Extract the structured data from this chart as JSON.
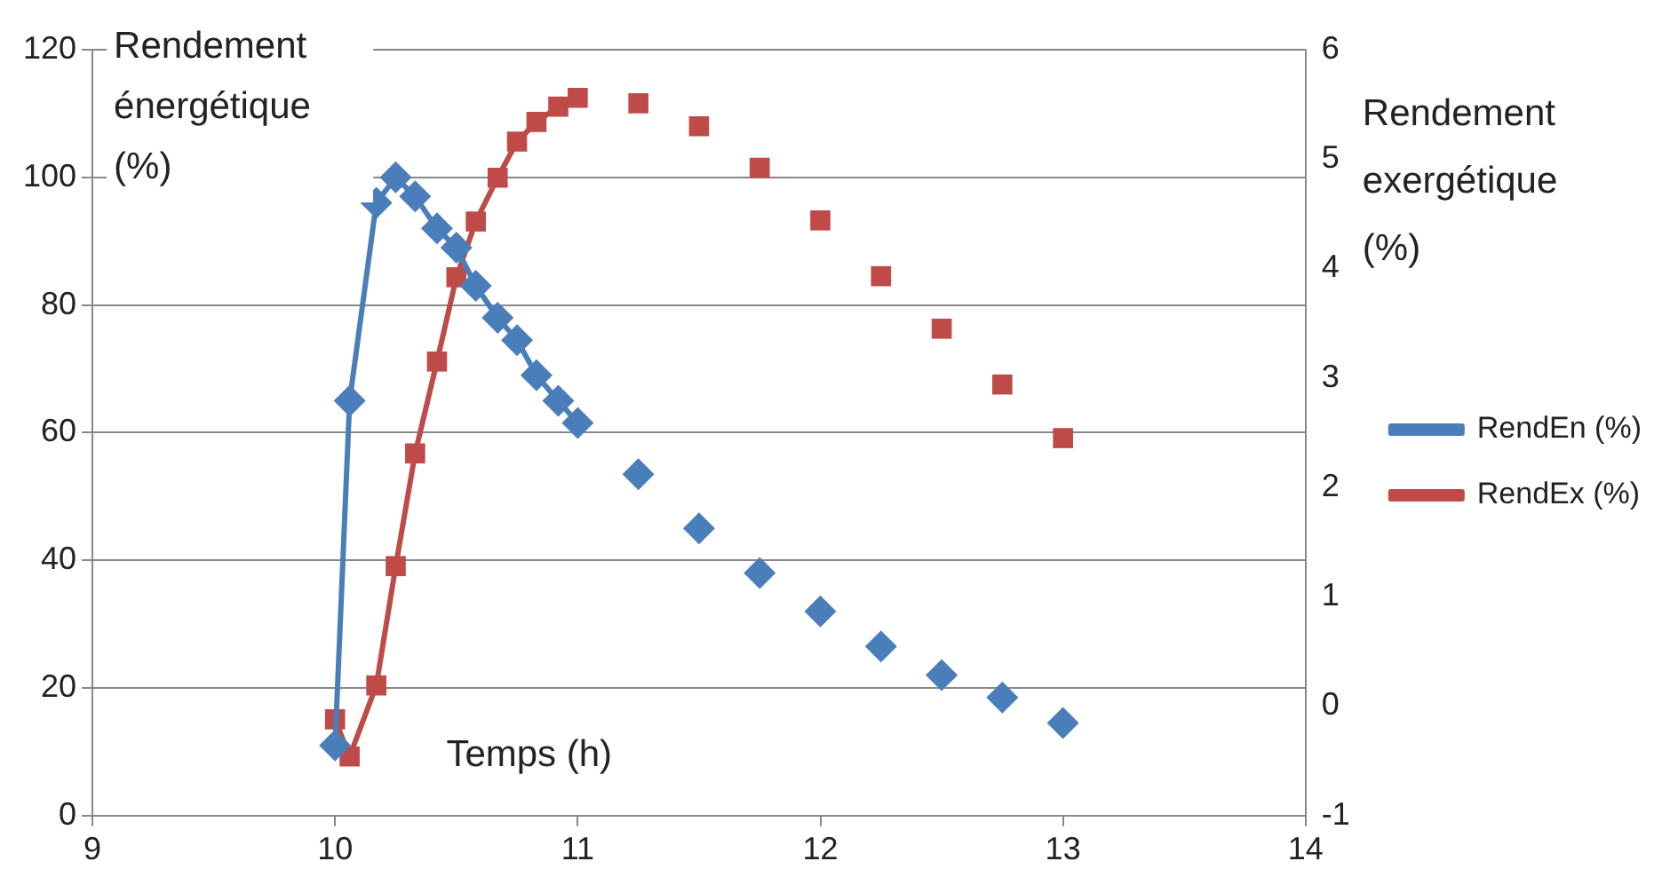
{
  "chart_data": {
    "type": "line",
    "xlabel": "Temps (h)",
    "ylabel": "Rendement énergétique (%)",
    "y2label": "Rendement exergétique (%)",
    "x": [
      10,
      10.06,
      10.17,
      10.25,
      10.33,
      10.42,
      10.5,
      10.58,
      10.67,
      10.75,
      10.83,
      10.92,
      11,
      11.125,
      11.25,
      11.375,
      11.5,
      11.625,
      11.75,
      11.875,
      12,
      12.125,
      12.25,
      12.375,
      12.5,
      12.625,
      12.75,
      12.875,
      13
    ],
    "series": [
      {
        "name": "RendEn (%)",
        "color": "#4a7ebb",
        "marker": "diamond",
        "values": [
          11,
          65,
          96,
          100,
          97,
          92,
          89,
          83,
          78,
          74.5,
          69,
          65,
          61.5,
          null,
          53.5,
          null,
          45,
          null,
          38,
          null,
          32,
          null,
          26.5,
          null,
          22,
          null,
          18.5,
          null,
          14.5
        ]
      },
      {
        "name": "RendEx (%)",
        "color": "#be4b48",
        "marker": "square",
        "axis": "y2",
        "values": [
          -0.12,
          -0.46,
          0.19,
          1.28,
          2.31,
          3.15,
          3.92,
          4.43,
          4.83,
          5.16,
          5.34,
          5.48,
          5.56,
          null,
          5.51,
          null,
          5.3,
          null,
          4.92,
          null,
          4.44,
          null,
          3.93,
          null,
          3.45,
          null,
          2.94,
          null,
          2.45
        ]
      }
    ],
    "xlim": [
      9,
      14
    ],
    "xticks": [
      9,
      10,
      11,
      12,
      13,
      14
    ],
    "ylim": [
      0,
      120
    ],
    "yticks": [
      0,
      20,
      40,
      60,
      80,
      100,
      120
    ],
    "y2lim": [
      -1,
      6
    ],
    "y2ticks": [
      -1,
      0,
      1,
      2,
      3,
      4,
      5,
      6
    ],
    "grid": "y",
    "legend": "right",
    "line_style": "solid"
  }
}
